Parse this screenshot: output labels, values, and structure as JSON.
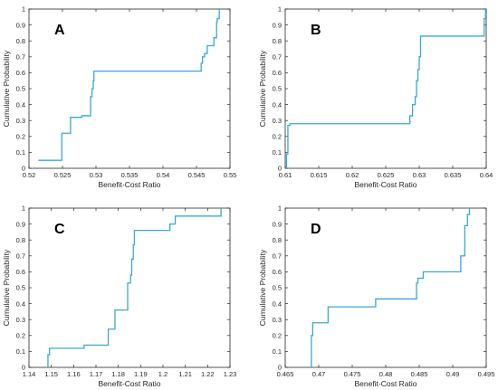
{
  "chart_data": [
    {
      "type": "line",
      "panel_label": "A",
      "xlabel": "Benefit-Cost Ratio",
      "ylabel": "Cumulative Probability",
      "xlim": [
        0.52,
        0.55
      ],
      "ylim": [
        0,
        1
      ],
      "xticks": [
        0.52,
        0.525,
        0.53,
        0.535,
        0.54,
        0.545,
        0.55
      ],
      "xtick_labels": [
        "0.52",
        "0.525",
        "0.53",
        "0.535",
        "0.54",
        "0.545",
        "0.55"
      ],
      "yticks": [
        0,
        0.1,
        0.2,
        0.3,
        0.4,
        0.5,
        0.6,
        0.7,
        0.8,
        0.9,
        1
      ],
      "ytick_labels": [
        "0",
        "0.1",
        "0.2",
        "0.3",
        "0.4",
        "0.5",
        "0.6",
        "0.7",
        "0.8",
        "0.9",
        "1"
      ],
      "series": [
        {
          "color": "#3aa7d4",
          "x": [
            0.5214,
            0.5249,
            0.5249,
            0.5262,
            0.5262,
            0.5279,
            0.5279,
            0.5292,
            0.5292,
            0.5294,
            0.5294,
            0.5296,
            0.5296,
            0.5297,
            0.5297,
            0.5457,
            0.5457,
            0.5459,
            0.5459,
            0.5462,
            0.5462,
            0.5466,
            0.5466,
            0.5476,
            0.5476,
            0.548,
            0.548,
            0.5481,
            0.5481,
            0.5484,
            0.5484
          ],
          "y": [
            0.05,
            0.05,
            0.22,
            0.22,
            0.32,
            0.32,
            0.33,
            0.33,
            0.45,
            0.45,
            0.5,
            0.5,
            0.55,
            0.55,
            0.61,
            0.61,
            0.66,
            0.66,
            0.7,
            0.7,
            0.72,
            0.72,
            0.77,
            0.77,
            0.82,
            0.82,
            0.92,
            0.92,
            0.94,
            0.94,
            1.0
          ]
        }
      ]
    },
    {
      "type": "line",
      "panel_label": "B",
      "xlabel": "Benefit-Cost Ratio",
      "ylabel": "Cumulative Probability",
      "xlim": [
        0.61,
        0.64
      ],
      "ylim": [
        0,
        1
      ],
      "xticks": [
        0.61,
        0.615,
        0.62,
        0.625,
        0.63,
        0.635,
        0.64
      ],
      "xtick_labels": [
        "0.61",
        "0.615",
        "0.62",
        "0.625",
        "0.63",
        "0.635",
        "0.64"
      ],
      "yticks": [
        0,
        0.1,
        0.2,
        0.3,
        0.4,
        0.5,
        0.6,
        0.7,
        0.8,
        0.9,
        1
      ],
      "ytick_labels": [
        "0",
        "0.1",
        "0.2",
        "0.3",
        "0.4",
        "0.5",
        "0.6",
        "0.7",
        "0.8",
        "0.9",
        "1"
      ],
      "series": [
        {
          "color": "#3aa7d4",
          "x": [
            0.6102,
            0.6102,
            0.6104,
            0.6104,
            0.6107,
            0.6107,
            0.6286,
            0.6286,
            0.629,
            0.629,
            0.6294,
            0.6294,
            0.6296,
            0.6296,
            0.6298,
            0.6298,
            0.63,
            0.63,
            0.6302,
            0.6302,
            0.6397,
            0.6397,
            0.6399,
            0.6399
          ],
          "y": [
            0.0,
            0.09,
            0.09,
            0.27,
            0.27,
            0.28,
            0.28,
            0.33,
            0.33,
            0.4,
            0.4,
            0.45,
            0.45,
            0.55,
            0.55,
            0.62,
            0.62,
            0.7,
            0.7,
            0.83,
            0.83,
            0.94,
            0.94,
            1.0
          ]
        }
      ]
    },
    {
      "type": "line",
      "panel_label": "C",
      "xlabel": "Benefit-Cost Ratio",
      "ylabel": "Cumulative Probability",
      "xlim": [
        1.14,
        1.23
      ],
      "ylim": [
        0,
        1
      ],
      "xticks": [
        1.14,
        1.15,
        1.16,
        1.17,
        1.18,
        1.19,
        1.2,
        1.21,
        1.22,
        1.23
      ],
      "xtick_labels": [
        "1.14",
        "1.15",
        "1.16",
        "1.17",
        "1.18",
        "1.19",
        "1.2",
        "1.21",
        "1.22",
        "1.23"
      ],
      "yticks": [
        0,
        0.1,
        0.2,
        0.3,
        0.4,
        0.5,
        0.6,
        0.7,
        0.8,
        0.9,
        1
      ],
      "ytick_labels": [
        "0",
        "0.1",
        "0.2",
        "0.3",
        "0.4",
        "0.5",
        "0.6",
        "0.7",
        "0.8",
        "0.9",
        "1"
      ],
      "series": [
        {
          "color": "#3aa7d4",
          "x": [
            1.1485,
            1.1485,
            1.1492,
            1.1492,
            1.1647,
            1.1647,
            1.1755,
            1.1755,
            1.1785,
            1.1785,
            1.1842,
            1.1842,
            1.1855,
            1.1855,
            1.186,
            1.186,
            1.1867,
            1.1867,
            1.1872,
            1.1872,
            1.1952,
            1.1952,
            1.2031,
            1.2031,
            1.2055,
            1.2055,
            1.2075,
            1.2075,
            1.226,
            1.226
          ],
          "y": [
            0.0,
            0.08,
            0.08,
            0.12,
            0.12,
            0.14,
            0.14,
            0.24,
            0.24,
            0.36,
            0.36,
            0.53,
            0.53,
            0.58,
            0.58,
            0.68,
            0.68,
            0.77,
            0.77,
            0.86,
            0.86,
            0.86,
            0.86,
            0.9,
            0.9,
            0.95,
            0.95,
            0.95,
            0.95,
            1.0
          ]
        }
      ]
    },
    {
      "type": "line",
      "panel_label": "D",
      "xlabel": "Benefit-Cost Ratio",
      "ylabel": "Cumulative Probability",
      "xlim": [
        0.465,
        0.495
      ],
      "ylim": [
        0,
        1
      ],
      "xticks": [
        0.465,
        0.47,
        0.475,
        0.48,
        0.485,
        0.49,
        0.495
      ],
      "xtick_labels": [
        "0.465",
        "0.47",
        "0.475",
        "0.48",
        "0.485",
        "0.49",
        "0.495"
      ],
      "yticks": [
        0,
        0.1,
        0.2,
        0.3,
        0.4,
        0.5,
        0.6,
        0.7,
        0.8,
        0.9,
        1
      ],
      "ytick_labels": [
        "0",
        "0.1",
        "0.2",
        "0.3",
        "0.4",
        "0.5",
        "0.6",
        "0.7",
        "0.8",
        "0.9",
        "1"
      ],
      "series": [
        {
          "color": "#3aa7d4",
          "x": [
            0.4689,
            0.4689,
            0.4691,
            0.4691,
            0.4714,
            0.4714,
            0.4785,
            0.4785,
            0.4846,
            0.4846,
            0.4848,
            0.4848,
            0.4856,
            0.4856,
            0.4912,
            0.4912,
            0.4918,
            0.4918,
            0.4922,
            0.4922,
            0.4925,
            0.4925
          ],
          "y": [
            0.0,
            0.2,
            0.2,
            0.28,
            0.28,
            0.38,
            0.38,
            0.43,
            0.43,
            0.53,
            0.53,
            0.56,
            0.56,
            0.6,
            0.6,
            0.7,
            0.7,
            0.89,
            0.89,
            0.96,
            0.96,
            1.0
          ]
        }
      ]
    }
  ]
}
